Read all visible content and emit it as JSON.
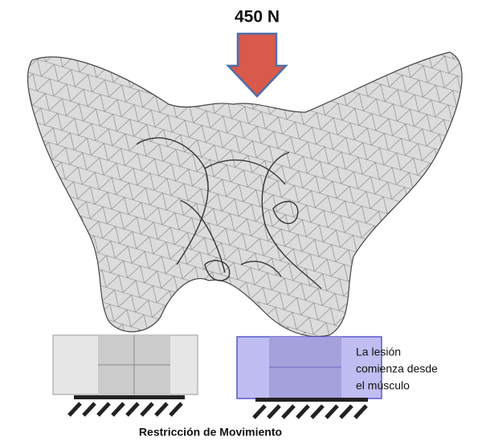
{
  "load": {
    "label": "450 N"
  },
  "annotation": {
    "lines": [
      "La lesión",
      "comienza desde",
      "el músculo"
    ]
  },
  "caption": "Restricción de Movimiento"
}
